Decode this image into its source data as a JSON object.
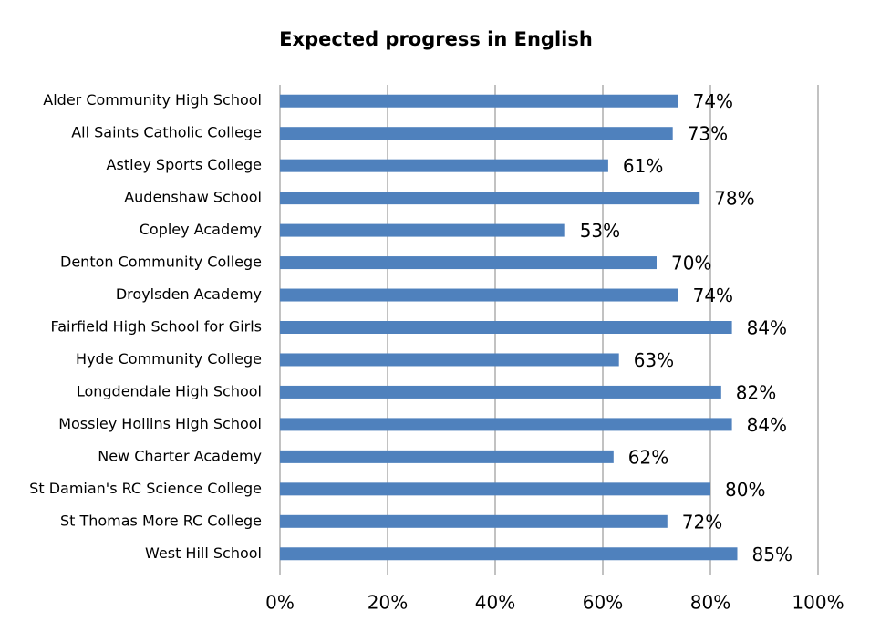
{
  "chart_data": {
    "type": "bar",
    "orientation": "horizontal",
    "title": "Expected progress in English",
    "categories": [
      "Alder Community High School",
      "All Saints Catholic College",
      "Astley Sports College",
      "Audenshaw School",
      "Copley Academy",
      "Denton Community College",
      "Droylsden Academy",
      "Fairfield High School for Girls",
      "Hyde Community College",
      "Longdendale High School",
      "Mossley Hollins High School",
      "New Charter Academy",
      "St Damian's RC Science College",
      "St Thomas More RC College",
      "West Hill School"
    ],
    "values": [
      74,
      73,
      61,
      78,
      53,
      70,
      74,
      84,
      63,
      82,
      84,
      62,
      80,
      72,
      85
    ],
    "value_labels": [
      "74%",
      "73%",
      "61%",
      "78%",
      "53%",
      "70%",
      "74%",
      "84%",
      "63%",
      "82%",
      "84%",
      "62%",
      "80%",
      "72%",
      "85%"
    ],
    "color": "#4f81bd",
    "xlim": [
      0,
      100
    ],
    "xticks": [
      {
        "value": 0,
        "label": "0%"
      },
      {
        "value": 20,
        "label": "20%"
      },
      {
        "value": 40,
        "label": "40%"
      },
      {
        "value": 60,
        "label": "60%"
      },
      {
        "value": 80,
        "label": "80%"
      },
      {
        "value": 100,
        "label": "100%"
      }
    ],
    "grid": true
  }
}
